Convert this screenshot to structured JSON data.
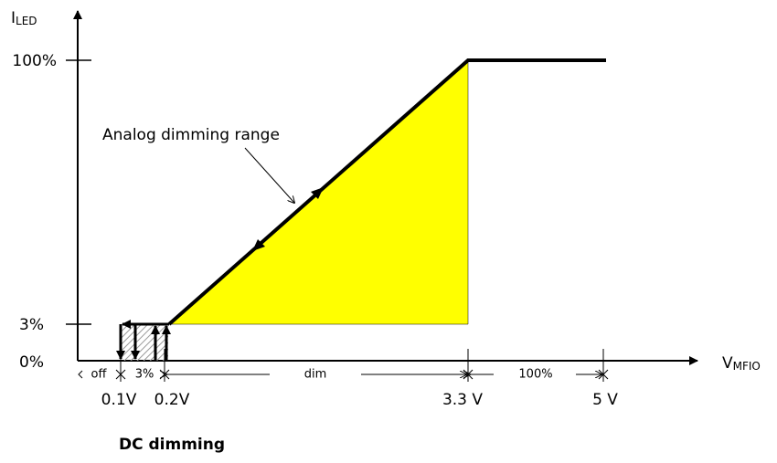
{
  "y_axis": {
    "label": {
      "main": "I",
      "sub": "LED"
    },
    "ticks": [
      "100%",
      "3%",
      "0%"
    ]
  },
  "x_axis": {
    "label": {
      "main": "V",
      "sub": "MFIO"
    },
    "ticks": [
      "0.1V",
      "0.2V",
      "3.3 V",
      "5 V"
    ]
  },
  "ranges": [
    "off",
    "3%",
    "dim",
    "100%"
  ],
  "annotation": "Analog dimming range",
  "caption": "DC dimming"
}
